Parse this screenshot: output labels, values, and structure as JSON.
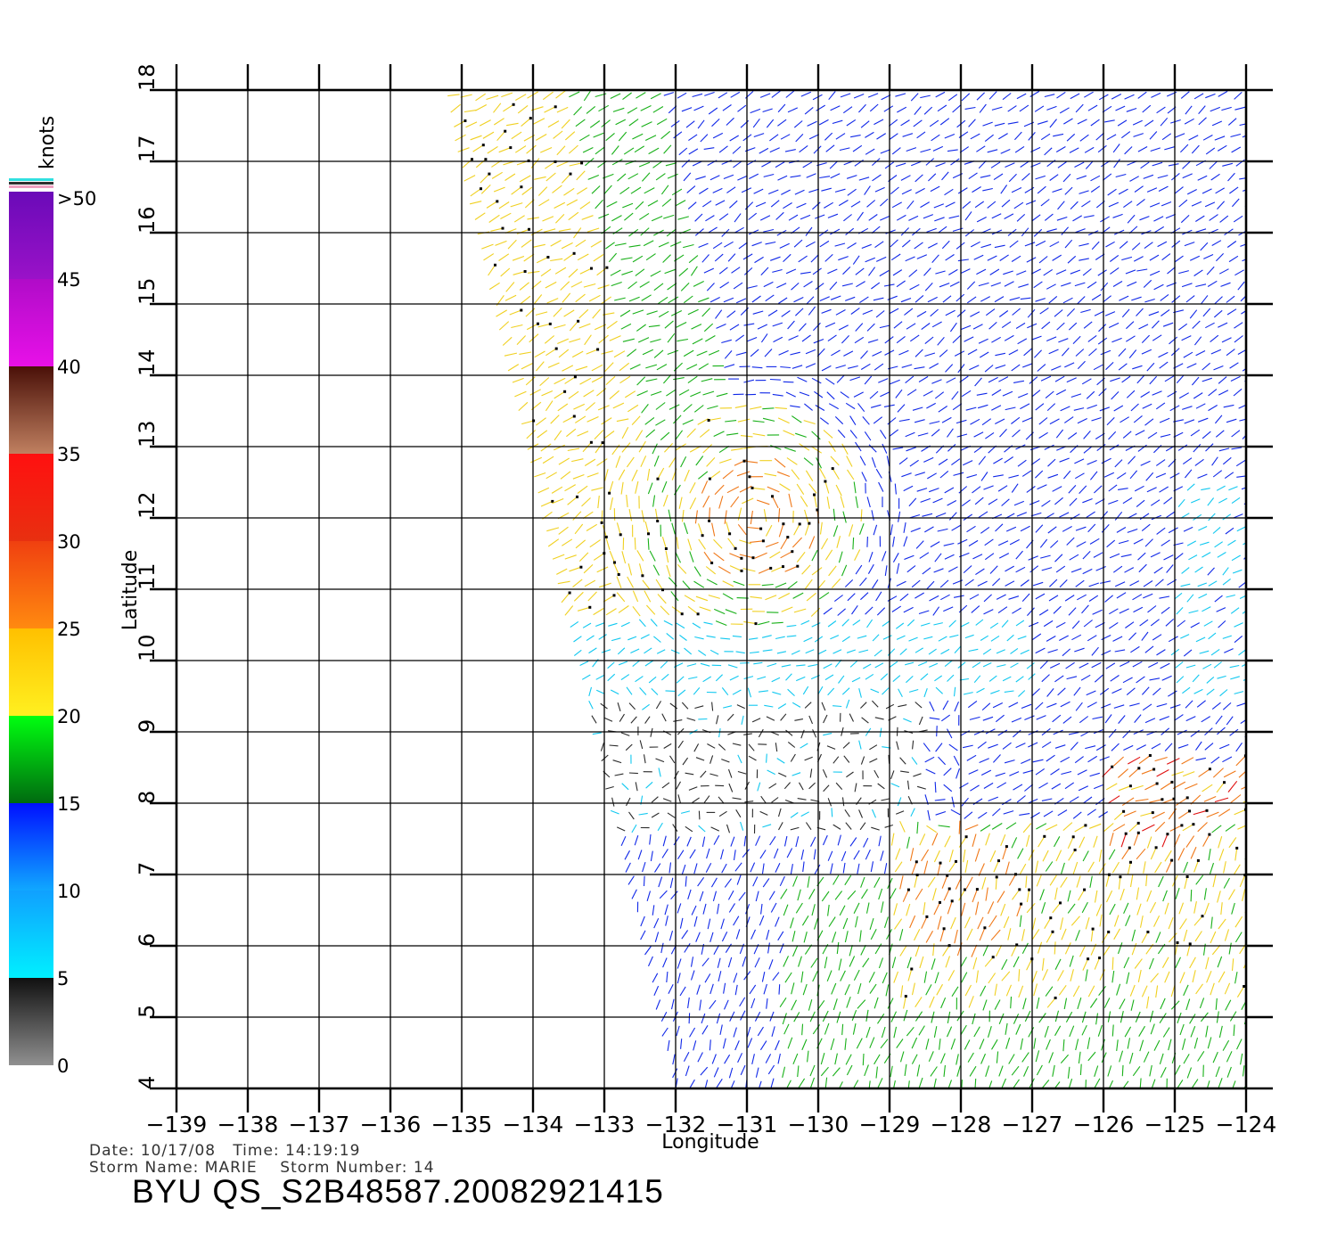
{
  "map": {
    "x_axis_title": "Longitude",
    "y_axis_title": "Latitude",
    "lon_range": [
      -139,
      -124
    ],
    "lat_range": [
      4,
      18
    ],
    "lon_ticks": [
      "−139",
      "−138",
      "−137",
      "−136",
      "−135",
      "−134",
      "−133",
      "−132",
      "−131",
      "−130",
      "−129",
      "−128",
      "−127",
      "−126",
      "−125",
      "−124"
    ],
    "lat_ticks": [
      "4",
      "5",
      "6",
      "7",
      "8",
      "9",
      "10",
      "11",
      "12",
      "13",
      "14",
      "15",
      "16",
      "17",
      "18"
    ],
    "swath_edge": [
      [
        -135.2,
        18
      ],
      [
        -132.0,
        4
      ]
    ],
    "storm_center": {
      "lon": -130.9,
      "lat": 12.0
    },
    "secondary_centers": [
      {
        "lon": -128.0,
        "lat": 6.8
      },
      {
        "lon": -125.2,
        "lat": 7.9
      }
    ]
  },
  "legend": {
    "unit": "knots",
    "labels": [
      ">50",
      "45",
      "40",
      "35",
      "30",
      "25",
      "20",
      "15",
      "10",
      "5",
      "0"
    ],
    "bands": [
      {
        "from": "#6a0ab8",
        "to": "#9a12c8"
      },
      {
        "from": "#b00cc8",
        "to": "#e810e8"
      },
      {
        "from": "#4a1008",
        "to": "#c08060"
      },
      {
        "from": "#ff1010",
        "to": "#e83010"
      },
      {
        "from": "#f04010",
        "to": "#ff8a10"
      },
      {
        "from": "#ffc000",
        "to": "#fff020"
      },
      {
        "from": "#00ff10",
        "to": "#006a10"
      },
      {
        "from": "#0010ff",
        "to": "#10a8ff"
      },
      {
        "from": "#10a0ff",
        "to": "#00f0ff"
      },
      {
        "from": "#101010",
        "to": "#909090"
      }
    ],
    "top_stripes": [
      "#30e0e0",
      "#303030",
      "#f0a0c0"
    ]
  },
  "metadata": {
    "line1": "Date: 10/17/08   Time: 14:19:19",
    "line2": "Storm Name: MARIE    Storm Number: 14",
    "product": "BYU QS_S2B48587.20082921415"
  }
}
